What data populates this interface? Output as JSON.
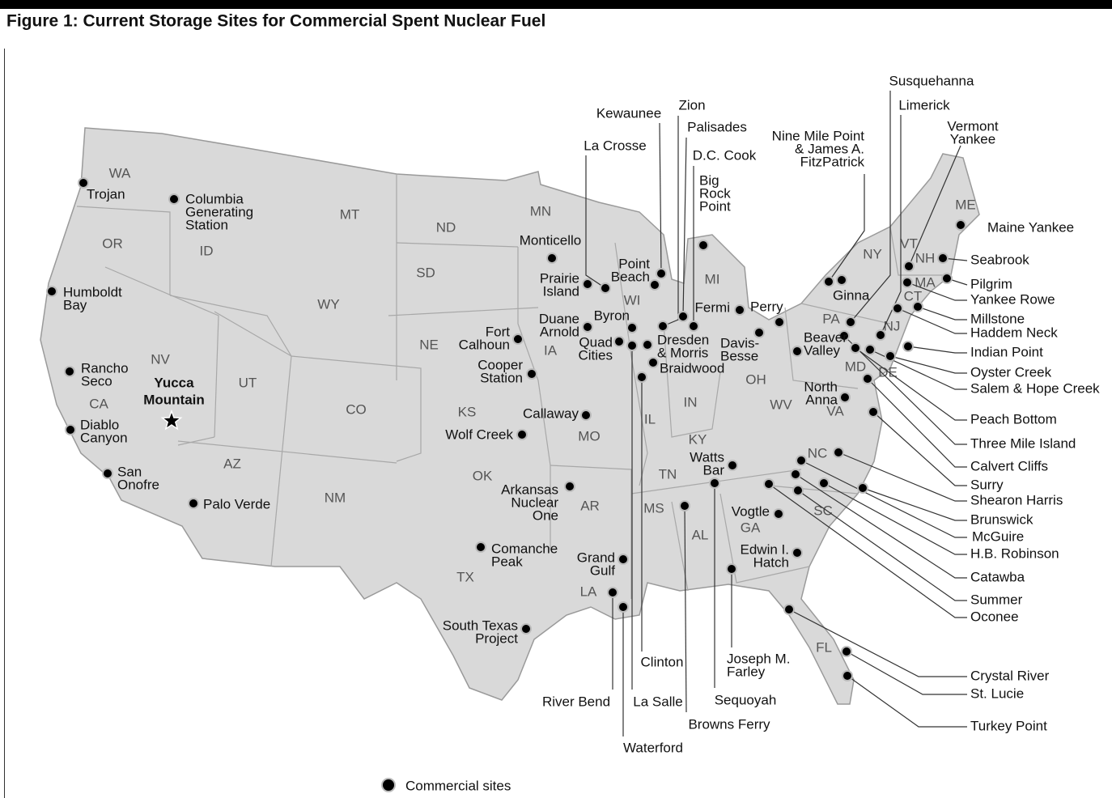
{
  "header": {
    "title": "Figure 1: Current Storage Sites for Commercial Spent Nuclear Fuel"
  },
  "map": {
    "states": [
      "WA",
      "OR",
      "CA",
      "NV",
      "ID",
      "MT",
      "WY",
      "UT",
      "CO",
      "AZ",
      "NM",
      "ND",
      "SD",
      "NE",
      "KS",
      "OK",
      "TX",
      "MN",
      "IA",
      "MO",
      "AR",
      "LA",
      "WI",
      "IL",
      "MS",
      "MI",
      "IN",
      "KY",
      "TN",
      "AL",
      "OH",
      "WV",
      "PA",
      "NY",
      "VT",
      "NH",
      "ME",
      "MA",
      "CT",
      "NJ",
      "MD",
      "DE",
      "VA",
      "NC",
      "SC",
      "GA",
      "FL"
    ],
    "repository": {
      "label": [
        "Yucca",
        "Mountain"
      ]
    },
    "sites": [
      {
        "label": [
          "Trojan"
        ]
      },
      {
        "label": [
          "Columbia",
          "Generating",
          "Station"
        ]
      },
      {
        "label": [
          "Humboldt",
          "Bay"
        ]
      },
      {
        "label": [
          "Rancho",
          "Seco"
        ]
      },
      {
        "label": [
          "Diablo",
          "Canyon"
        ]
      },
      {
        "label": [
          "San",
          "Onofre"
        ]
      },
      {
        "label": [
          "Palo Verde"
        ]
      },
      {
        "label": [
          "Comanche",
          "Peak"
        ]
      },
      {
        "label": [
          "South Texas",
          "Project"
        ]
      },
      {
        "label": [
          "Grand",
          "Gulf"
        ]
      },
      {
        "label": [
          "River Bend"
        ]
      },
      {
        "label": [
          "Waterford"
        ]
      },
      {
        "label": [
          "La Salle"
        ]
      },
      {
        "label": [
          "Clinton"
        ]
      },
      {
        "label": [
          "Arkansas",
          "Nuclear",
          "One"
        ]
      },
      {
        "label": [
          "Wolf Creek"
        ]
      },
      {
        "label": [
          "Callaway"
        ]
      },
      {
        "label": [
          "Cooper",
          "Station"
        ]
      },
      {
        "label": [
          "Fort",
          "Calhoun"
        ]
      },
      {
        "label": [
          "Duane",
          "Arnold"
        ]
      },
      {
        "label": [
          "Quad",
          "Cities"
        ]
      },
      {
        "label": [
          "Byron"
        ]
      },
      {
        "label": [
          "Dresden",
          "& Morris"
        ]
      },
      {
        "label": [
          "Braidwood"
        ]
      },
      {
        "label": [
          "Prairie",
          "Island"
        ]
      },
      {
        "label": [
          "Monticello"
        ]
      },
      {
        "label": [
          "La Crosse"
        ]
      },
      {
        "label": [
          "Point",
          "Beach"
        ]
      },
      {
        "label": [
          "Kewaunee"
        ]
      },
      {
        "label": [
          "Zion"
        ]
      },
      {
        "label": [
          "Palisades"
        ]
      },
      {
        "label": [
          "D.C. Cook"
        ]
      },
      {
        "label": [
          "Big",
          "Rock",
          "Point"
        ]
      },
      {
        "label": [
          "Fermi"
        ]
      },
      {
        "label": [
          "Perry"
        ]
      },
      {
        "label": [
          "Davis-",
          "Besse"
        ]
      },
      {
        "label": [
          "Beaver",
          "Valley"
        ]
      },
      {
        "label": [
          "Nine Mile Point",
          "& James A.",
          "FitzPatrick"
        ]
      },
      {
        "label": [
          "Ginna"
        ]
      },
      {
        "label": [
          "Susquehanna"
        ]
      },
      {
        "label": [
          "Limerick"
        ]
      },
      {
        "label": [
          "Vermont",
          "Yankee"
        ]
      },
      {
        "label": [
          "Maine Yankee"
        ]
      },
      {
        "label": [
          "Seabrook"
        ]
      },
      {
        "label": [
          "Pilgrim"
        ]
      },
      {
        "label": [
          "Yankee Rowe"
        ]
      },
      {
        "label": [
          "Millstone"
        ]
      },
      {
        "label": [
          "Haddem Neck"
        ]
      },
      {
        "label": [
          "Indian Point"
        ]
      },
      {
        "label": [
          "Oyster Creek"
        ]
      },
      {
        "label": [
          "Salem & Hope Creek"
        ]
      },
      {
        "label": [
          "Peach Bottom"
        ]
      },
      {
        "label": [
          "Three Mile Island"
        ]
      },
      {
        "label": [
          "Calvert Cliffs"
        ]
      },
      {
        "label": [
          "North",
          "Anna"
        ]
      },
      {
        "label": [
          "Surry"
        ]
      },
      {
        "label": [
          "Shearon Harris"
        ]
      },
      {
        "label": [
          "Brunswick"
        ]
      },
      {
        "label": [
          "McGuire"
        ]
      },
      {
        "label": [
          "H.B. Robinson"
        ]
      },
      {
        "label": [
          "Catawba"
        ]
      },
      {
        "label": [
          "Summer"
        ]
      },
      {
        "label": [
          "Oconee"
        ]
      },
      {
        "label": [
          "Watts",
          "Bar"
        ]
      },
      {
        "label": [
          "Sequoyah"
        ]
      },
      {
        "label": [
          "Browns Ferry"
        ]
      },
      {
        "label": [
          "Vogtle"
        ]
      },
      {
        "label": [
          "Edwin I.",
          "Hatch"
        ]
      },
      {
        "label": [
          "Joseph M.",
          "Farley"
        ]
      },
      {
        "label": [
          "Crystal River"
        ]
      },
      {
        "label": [
          "St. Lucie"
        ]
      },
      {
        "label": [
          "Turkey Point"
        ]
      }
    ]
  },
  "legend": {
    "label": "Commercial sites"
  }
}
